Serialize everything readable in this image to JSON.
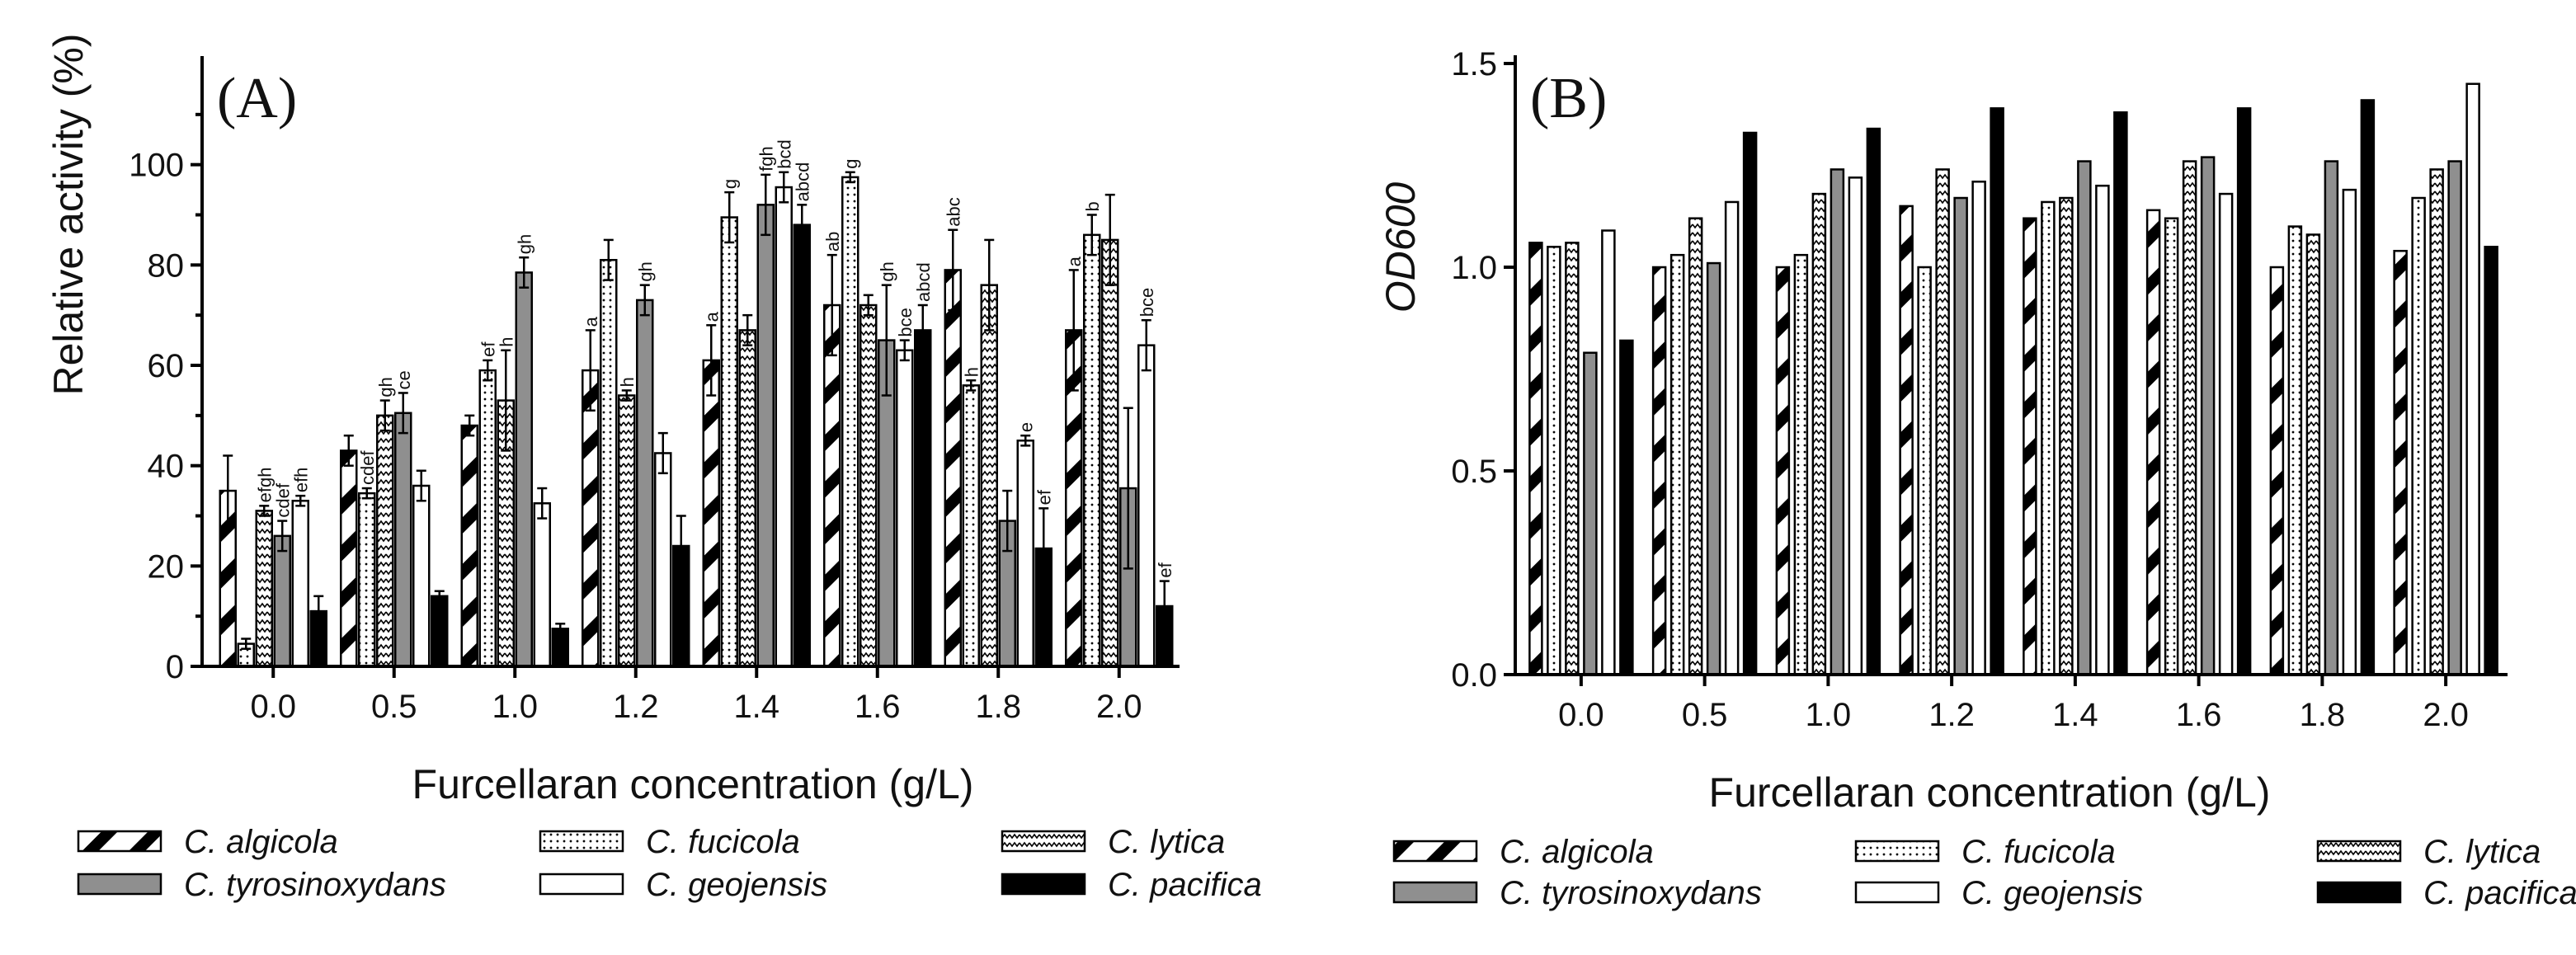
{
  "chart_data": [
    {
      "type": "bar",
      "panel_label": "(A)",
      "ylabel": "Relative activity (%)",
      "xlabel": "Furcellaran concentration (g/L)",
      "ylim": [
        0,
        120
      ],
      "yticks": [
        "0",
        "20",
        "40",
        "60",
        "80",
        "100"
      ],
      "categories": [
        "0.0",
        "0.5",
        "1.0",
        "1.2",
        "1.4",
        "1.6",
        "1.8",
        "2.0"
      ],
      "series": [
        {
          "name": "C. algicola",
          "values": [
            35,
            43,
            48,
            59,
            61,
            72,
            79,
            67
          ],
          "errors": [
            7,
            3,
            2,
            8,
            7,
            10,
            8,
            12
          ],
          "letters": [
            "",
            "",
            "",
            "a",
            "a",
            "ab",
            "abc",
            "a"
          ]
        },
        {
          "name": "C. fucicola",
          "values": [
            4.5,
            34.5,
            59,
            81,
            89.5,
            97.5,
            56,
            86
          ],
          "errors": [
            1,
            1,
            2,
            4,
            5,
            1,
            1,
            4
          ],
          "letters": [
            "",
            "cdef",
            "ef",
            "",
            "g",
            "g",
            "h",
            "b"
          ]
        },
        {
          "name": "C. lytica",
          "values": [
            31,
            50,
            53,
            54,
            67,
            72,
            76,
            85
          ],
          "errors": [
            1,
            3,
            10,
            1,
            3,
            2,
            9,
            9
          ],
          "letters": [
            "efgh",
            "gh",
            "h",
            "h",
            "",
            "",
            "",
            ""
          ]
        },
        {
          "name": "C. tyrosinoxydans",
          "values": [
            26,
            50.5,
            78.5,
            73,
            92,
            65,
            29,
            35.5
          ],
          "errors": [
            3,
            4,
            3,
            3,
            6,
            11,
            6,
            16
          ],
          "letters": [
            "cdef",
            "ce",
            "gh",
            "gh",
            "fgh",
            "gh",
            "",
            ""
          ]
        },
        {
          "name": "C. geojensis",
          "values": [
            33,
            36,
            32.5,
            42.5,
            95.5,
            63,
            45,
            64
          ],
          "errors": [
            1,
            3,
            3,
            4,
            3,
            2,
            1,
            5
          ],
          "letters": [
            "efh",
            "",
            "",
            "",
            "bcd",
            "bce",
            "e",
            "bce"
          ]
        },
        {
          "name": "C. pacifica",
          "values": [
            11,
            14,
            7.5,
            24,
            88,
            67,
            23.5,
            12
          ],
          "errors": [
            3,
            1,
            1,
            6,
            4,
            5,
            8,
            5
          ],
          "letters": [
            "",
            "",
            "",
            "",
            "abcd",
            "abcd",
            "ef",
            "ef"
          ]
        }
      ]
    },
    {
      "type": "bar",
      "panel_label": "(B)",
      "ylabel": "OD600",
      "xlabel": "Furcellaran concentration (g/L)",
      "ylim": [
        0,
        1.5
      ],
      "yticks": [
        "0.0",
        "0.5",
        "1.0",
        "1.5"
      ],
      "categories": [
        "0.0",
        "0.5",
        "1.0",
        "1.2",
        "1.4",
        "1.6",
        "1.8",
        "2.0"
      ],
      "series": [
        {
          "name": "C. algicola",
          "values": [
            1.06,
            1.0,
            1.0,
            1.15,
            1.12,
            1.14,
            1.0,
            1.04
          ]
        },
        {
          "name": "C. fucicola",
          "values": [
            1.05,
            1.03,
            1.03,
            1.0,
            1.16,
            1.12,
            1.1,
            1.17
          ]
        },
        {
          "name": "C. lytica",
          "values": [
            1.06,
            1.12,
            1.18,
            1.24,
            1.17,
            1.26,
            1.08,
            1.24
          ]
        },
        {
          "name": "C. tyrosinoxydans",
          "values": [
            0.79,
            1.01,
            1.24,
            1.17,
            1.26,
            1.27,
            1.26,
            1.26
          ]
        },
        {
          "name": "C. geojensis",
          "values": [
            1.09,
            1.16,
            1.22,
            1.21,
            1.2,
            1.18,
            1.19,
            1.45
          ]
        },
        {
          "name": "C. pacifica",
          "values": [
            0.82,
            1.33,
            1.34,
            1.39,
            1.38,
            1.39,
            1.41,
            1.05
          ]
        }
      ]
    }
  ],
  "legend": {
    "entries": [
      {
        "label": "C. algicola",
        "pattern": "hatch"
      },
      {
        "label": "C. fucicola",
        "pattern": "dots"
      },
      {
        "label": "C. lytica",
        "pattern": "zigzag"
      },
      {
        "label": "C. tyrosinoxydans",
        "pattern": "gray"
      },
      {
        "label": "C. geojensis",
        "pattern": "white"
      },
      {
        "label": "C. pacifica",
        "pattern": "black"
      }
    ]
  },
  "colors": {
    "gray": "#8f8f8f",
    "black": "#000000",
    "white": "#ffffff"
  }
}
